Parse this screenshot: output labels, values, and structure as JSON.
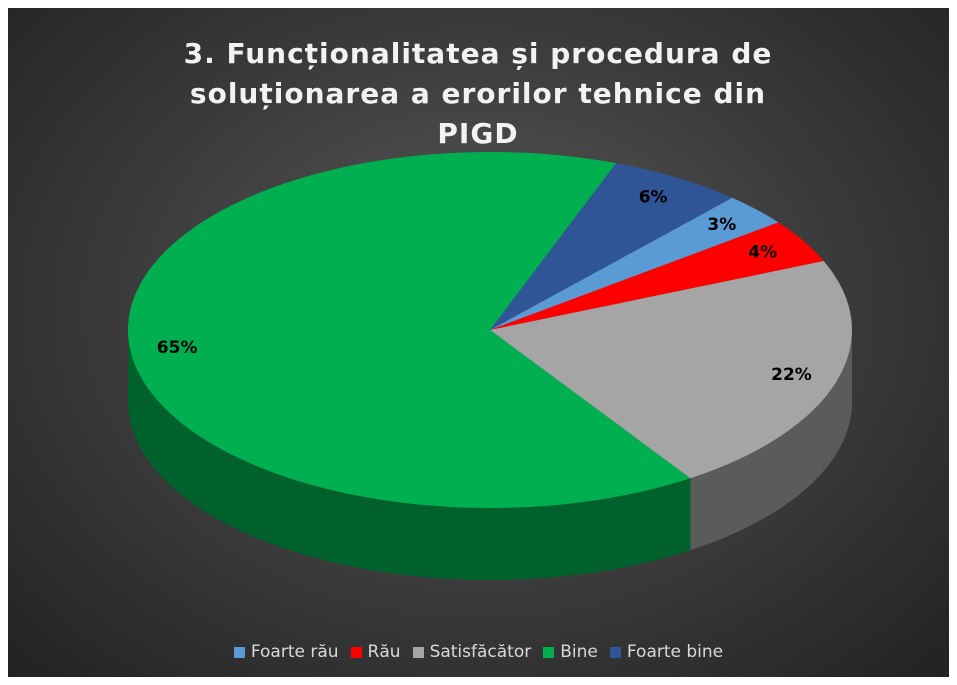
{
  "chart_data": {
    "type": "pie",
    "title": "3. Funcționalitatea și procedura de soluționarea a erorilor tehnice din PIGD",
    "categories": [
      "Foarte rău",
      "Rău",
      "Satisfăcător",
      "Bine",
      "Foarte bine"
    ],
    "values": [
      3,
      4,
      22,
      65,
      6
    ],
    "value_labels": [
      "3%",
      "4%",
      "22%",
      "65%",
      "6%"
    ],
    "colors": [
      "#5b9bd5",
      "#ff0000",
      "#a5a5a5",
      "#00b050",
      "#2f5597"
    ],
    "legend": "bottom"
  }
}
